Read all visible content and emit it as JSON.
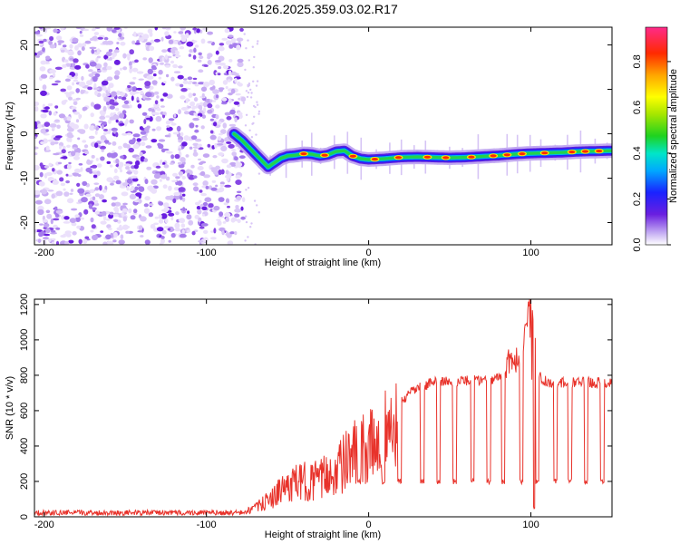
{
  "figure_title": "S126.2025.359.03.02.R17",
  "colors": {
    "snr_line": "#e8322a",
    "spectrogram_noise": "#7a3ce6",
    "background": "#ffffff",
    "axis": "#000000"
  },
  "chart_data": [
    {
      "type": "heatmap",
      "title": "S126.2025.359.03.02.R17",
      "xlabel": "Height of straight line (km)",
      "ylabel": "Frequency (Hz)",
      "xlim": [
        -206,
        150
      ],
      "ylim": [
        -25,
        24
      ],
      "x_ticks": [
        -200,
        -100,
        0,
        100
      ],
      "y_ticks": [
        20,
        10,
        0,
        -10,
        -20
      ],
      "noise_region_x": [
        -206,
        -77
      ],
      "signal_track": {
        "x": [
          -83,
          -78,
          -74,
          -70,
          -66,
          -62,
          -58,
          -54,
          -50,
          -45,
          -40,
          -35,
          -30,
          -25,
          -20,
          -15,
          -10,
          -5,
          0,
          10,
          20,
          30,
          40,
          50,
          60,
          70,
          80,
          90,
          100,
          110,
          120,
          130,
          140,
          150
        ],
        "freq_hz": [
          0,
          -1.5,
          -3,
          -4.5,
          -6,
          -7.5,
          -6.5,
          -5.5,
          -5,
          -4.8,
          -4.5,
          -4.6,
          -5,
          -4.7,
          -4,
          -3.8,
          -5,
          -5.6,
          -5.8,
          -5.6,
          -5.3,
          -5.2,
          -5.3,
          -5.4,
          -5.3,
          -5.1,
          -4.9,
          -4.6,
          -4.4,
          -4.3,
          -4.2,
          -4.0,
          -3.9,
          -3.8
        ]
      },
      "colorbar": {
        "label": "Normalized spectral amplitude",
        "ticks": [
          0.0,
          0.2,
          0.4,
          0.6,
          0.8
        ],
        "range": [
          0,
          0.95
        ]
      }
    },
    {
      "type": "line",
      "xlabel": "Height of straight line (km)",
      "ylabel": "SNR (10 * v/v)",
      "xlim": [
        -206,
        150
      ],
      "ylim": [
        0,
        1230
      ],
      "x_ticks": [
        -200,
        -100,
        0,
        100
      ],
      "y_ticks": [
        0,
        200,
        400,
        600,
        800,
        1000,
        1200
      ],
      "series": [
        {
          "name": "SNR",
          "description": "noise floor ~10-40 below -75 km; rising ramp -70 to 20 km; plateau ~750 from 20 to 150 km with periodic dropouts to ~200 and spike to ~1230 near 100 km",
          "anchors_x": [
            -206,
            -80,
            -70,
            -60,
            -50,
            -40,
            -30,
            -20,
            -10,
            0,
            10,
            20,
            30,
            40,
            60,
            80,
            90,
            95,
            100,
            105,
            110,
            130,
            150
          ],
          "anchors_y": [
            20,
            22,
            60,
            130,
            220,
            250,
            260,
            330,
            430,
            480,
            580,
            650,
            730,
            760,
            770,
            780,
            830,
            880,
            1230,
            800,
            760,
            760,
            760
          ],
          "dropout_centers_km": [
            -6,
            9,
            19,
            33,
            43,
            53,
            64,
            74,
            83,
            94,
            104,
            115,
            124,
            134,
            144
          ],
          "dropout_level": 200
        }
      ]
    }
  ]
}
